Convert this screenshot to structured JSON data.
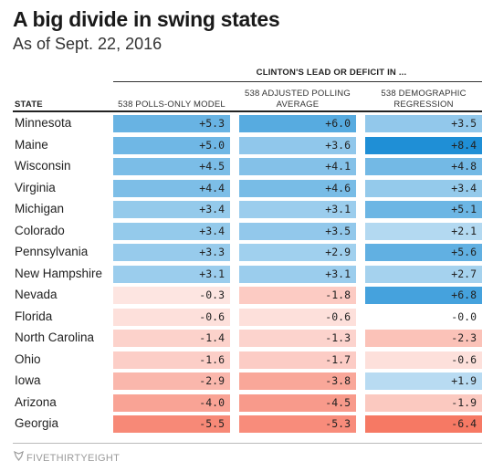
{
  "title": "A big divide in swing states",
  "subtitle": "As of Sept. 22, 2016",
  "group_label": "CLINTON'S LEAD OR DEFICIT IN ...",
  "state_header": "STATE",
  "columns": [
    "538 POLLS-ONLY MODEL",
    "538 ADJUSTED POLLING AVERAGE",
    "538 DEMOGRAPHIC REGRESSION"
  ],
  "footer": "FIVETHIRTYEIGHT",
  "colors": {
    "positive": "#1f8fd6",
    "negative": "#f4553b",
    "neutral": "#ffffff"
  },
  "chart_data": {
    "type": "table",
    "title": "A big divide in swing states",
    "subtitle": "As of Sept. 22, 2016",
    "columns": [
      "538 POLLS-ONLY MODEL",
      "538 ADJUSTED POLLING AVERAGE",
      "538 DEMOGRAPHIC REGRESSION"
    ],
    "rows": [
      {
        "state": "Minnesota",
        "values": [
          "+5.3",
          "+6.0",
          "+3.5"
        ]
      },
      {
        "state": "Maine",
        "values": [
          "+5.0",
          "+3.6",
          "+8.4"
        ]
      },
      {
        "state": "Wisconsin",
        "values": [
          "+4.5",
          "+4.1",
          "+4.8"
        ]
      },
      {
        "state": "Virginia",
        "values": [
          "+4.4",
          "+4.6",
          "+3.4"
        ]
      },
      {
        "state": "Michigan",
        "values": [
          "+3.4",
          "+3.1",
          "+5.1"
        ]
      },
      {
        "state": "Colorado",
        "values": [
          "+3.4",
          "+3.5",
          "+2.1"
        ]
      },
      {
        "state": "Pennsylvania",
        "values": [
          "+3.3",
          "+2.9",
          "+5.6"
        ]
      },
      {
        "state": "New Hampshire",
        "values": [
          "+3.1",
          "+3.1",
          "+2.7"
        ]
      },
      {
        "state": "Nevada",
        "values": [
          "-0.3",
          "-1.8",
          "+6.8"
        ]
      },
      {
        "state": "Florida",
        "values": [
          "-0.6",
          "-0.6",
          "-0.0"
        ]
      },
      {
        "state": "North Carolina",
        "values": [
          "-1.4",
          "-1.3",
          "-2.3"
        ]
      },
      {
        "state": "Ohio",
        "values": [
          "-1.6",
          "-1.7",
          "-0.6"
        ]
      },
      {
        "state": "Iowa",
        "values": [
          "-2.9",
          "-3.8",
          "+1.9"
        ]
      },
      {
        "state": "Arizona",
        "values": [
          "-4.0",
          "-4.5",
          "-1.9"
        ]
      },
      {
        "state": "Georgia",
        "values": [
          "-5.5",
          "-5.3",
          "-6.4"
        ]
      }
    ]
  }
}
